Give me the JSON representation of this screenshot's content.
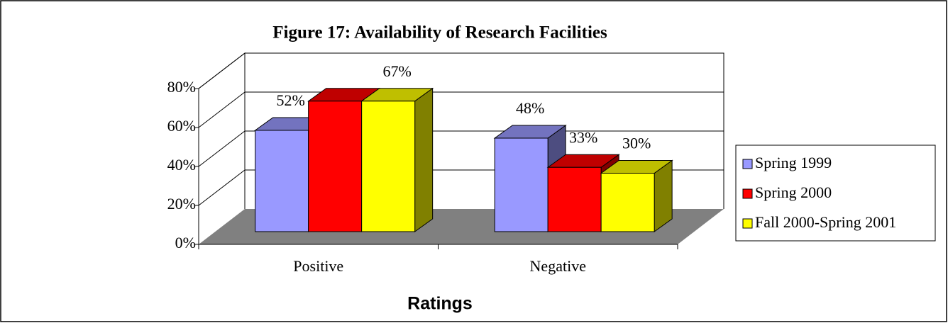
{
  "chart_data": {
    "type": "bar3d",
    "title": "Figure 17:  Availability of Research Facilities",
    "x_label": "Ratings",
    "categories": [
      "Positive",
      "Negative"
    ],
    "series": [
      {
        "name": "Spring 1999",
        "color": "#9999ff",
        "values": [
          52,
          48
        ],
        "value_labels": [
          "52%",
          "48%"
        ]
      },
      {
        "name": "Spring 2000",
        "color": "#ff0000",
        "values": [
          67,
          33
        ],
        "value_labels": [
          null,
          "33%"
        ]
      },
      {
        "name": "Fall 2000-Spring 2001",
        "color": "#ffff00",
        "values": [
          67,
          30
        ],
        "value_labels": [
          "67%",
          "30%"
        ]
      }
    ],
    "ylim": [
      0,
      80
    ],
    "yticks": [
      {
        "value": 0,
        "label": "0%"
      },
      {
        "value": 20,
        "label": "20%"
      },
      {
        "value": 40,
        "label": "40%"
      },
      {
        "value": 60,
        "label": "60%"
      },
      {
        "value": 80,
        "label": "80%"
      }
    ],
    "grid": true,
    "legend": "right"
  }
}
